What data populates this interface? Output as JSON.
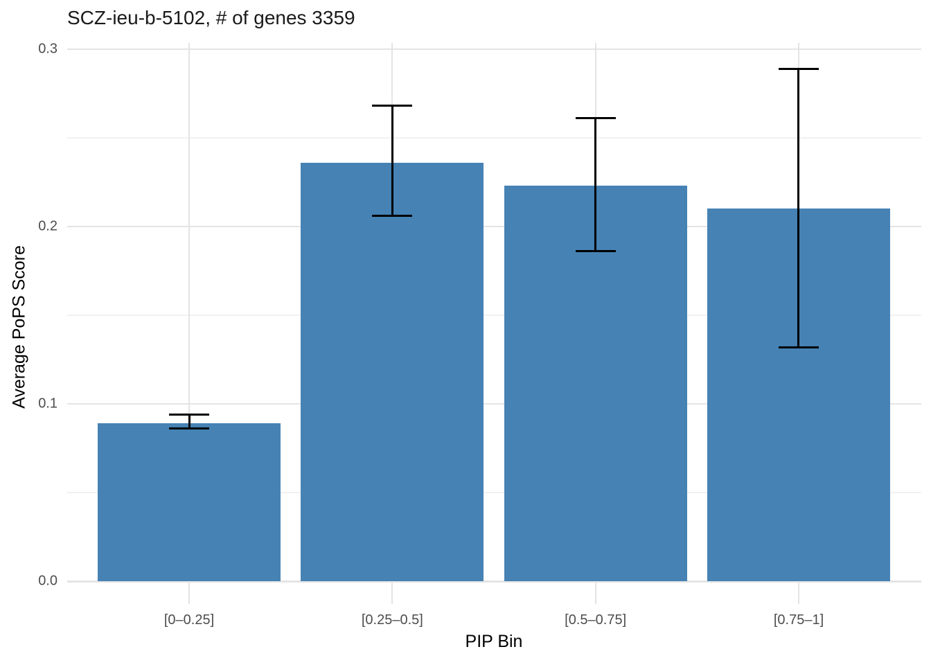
{
  "page": {
    "background_color": "#ffffff"
  },
  "chart_data": {
    "type": "bar",
    "title": "SCZ-ieu-b-5102, # of genes 3359",
    "xlabel": "PIP Bin",
    "ylabel": "Average PoPS Score",
    "categories": [
      "[0–0.25]",
      "[0.25–0.5]",
      "[0.5–0.75]",
      "[0.75–1]"
    ],
    "values": [
      0.089,
      0.236,
      0.223,
      0.21
    ],
    "error_low": [
      0.086,
      0.206,
      0.186,
      0.132
    ],
    "error_high": [
      0.094,
      0.268,
      0.261,
      0.289
    ],
    "ylim": [
      0,
      0.3
    ],
    "yticks": [
      0,
      0.1,
      0.2,
      0.3
    ],
    "ytick_labels": [
      "0.0",
      "0.1",
      "0.2",
      "0.3"
    ],
    "yticks_minor": [
      0.05,
      0.15,
      0.25
    ],
    "legend": "none",
    "grid": "major-and-minor-horizontal, vertical-at-categories",
    "bar_color": "#4682B4",
    "errorbar_color": "#000000",
    "grid_major_color": "#e4e4e4",
    "grid_minor_color": "#f1f1f1",
    "tick_label_color": "#4d4d4d",
    "title_color": "#1a1a1a",
    "axis_title_color": "#000000"
  }
}
